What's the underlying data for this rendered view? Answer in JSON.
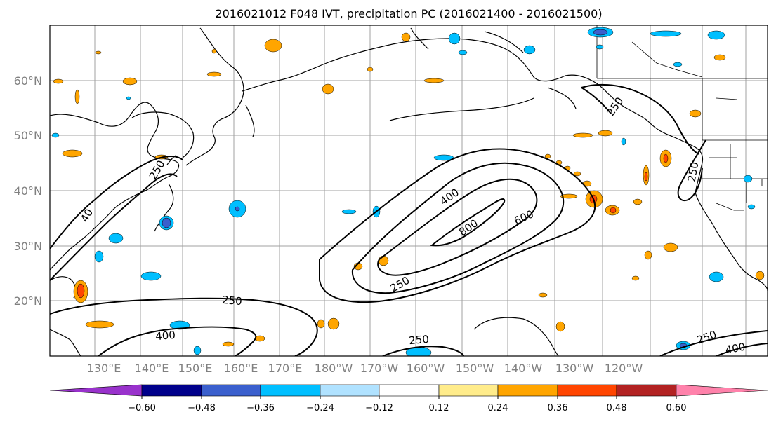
{
  "title": "2016021012 F048 IVT, precipitation PC (2016021400 - 2016021500)",
  "lat_labels": [
    "60°N",
    "50°N",
    "40°N",
    "30°N",
    "20°N"
  ],
  "lon_labels": [
    "130°E",
    "140°E",
    "150°E",
    "160°E",
    "170°E",
    "180°W",
    "170°W",
    "160°W",
    "150°W",
    "140°W",
    "130°W",
    "120°W"
  ],
  "contour_labels": {
    "c250_a": "250",
    "c250_b": "250",
    "c250_c": "250",
    "c250_d": "250",
    "c250_e": "250",
    "c250_f": "250",
    "c250_g": "250",
    "c400_a": "400",
    "c400_b": "400",
    "c400_c": "400",
    "c600": "600",
    "c800": "800",
    "c_w": "40"
  },
  "colorbar": {
    "ticks": [
      "−0.60",
      "−0.48",
      "−0.36",
      "−0.24",
      "−0.12",
      "0.12",
      "0.24",
      "0.36",
      "0.48",
      "0.60"
    ],
    "colors": {
      "under": "#9932cc",
      "c1": "#00008b",
      "c2": "#3a5fcd",
      "c3": "#00bfff",
      "c4": "#b0e2ff",
      "c5": "#ffffff",
      "c6": "#ffec8b",
      "c7": "#ffa500",
      "c8": "#ff4500",
      "c9": "#b22222",
      "over": "#ff82ab"
    }
  }
}
